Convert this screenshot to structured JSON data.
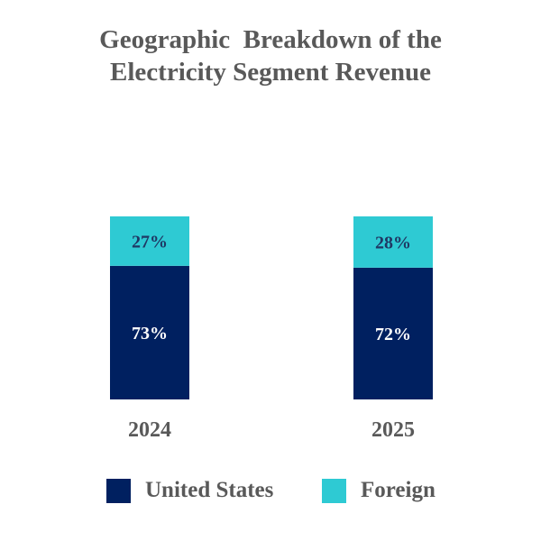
{
  "chart_data": {
    "type": "bar",
    "stacked": true,
    "title_line1": "Geographic  Breakdown of the",
    "title_line2": "Electricity Segment Revenue",
    "categories": [
      "2024",
      "2025"
    ],
    "series": [
      {
        "name": "United States",
        "values": [
          73,
          72
        ],
        "labels": [
          "73%",
          "72%"
        ],
        "color": "#002060",
        "label_color": "#ffffff"
      },
      {
        "name": "Foreign",
        "values": [
          27,
          28
        ],
        "labels": [
          "27%",
          "28%"
        ],
        "color": "#2ECAD3",
        "label_color": "#1F3864"
      }
    ],
    "ylim": [
      0,
      100
    ],
    "legend_position": "bottom"
  }
}
